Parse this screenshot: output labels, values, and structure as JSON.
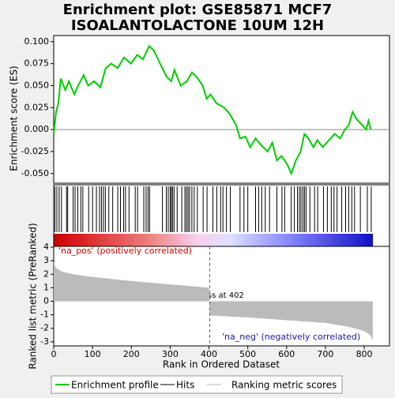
{
  "chart_data": [
    {
      "type": "line",
      "title": [
        "Enrichment plot: GSE85871 MCF7",
        "ISOALANTOLACTONE 10UM 12H"
      ],
      "ylabel": "Enrichment score (ES)",
      "color": "#00cc00",
      "xlim": [
        0,
        865
      ],
      "ylim": [
        -0.061,
        0.107
      ],
      "yticks": [
        {
          "value": 0.1,
          "label": "0.100"
        },
        {
          "value": 0.075,
          "label": "0.075"
        },
        {
          "value": 0.05,
          "label": "0.050"
        },
        {
          "value": 0.025,
          "label": "0.025"
        },
        {
          "value": 0,
          "label": "0.000"
        },
        {
          "value": -0.025,
          "label": "-0.025"
        },
        {
          "value": -0.05,
          "label": "-0.050"
        }
      ],
      "x": [
        0,
        6,
        12,
        18,
        30,
        39,
        53,
        63,
        77,
        89,
        104,
        120,
        134,
        148,
        165,
        181,
        199,
        215,
        230,
        246,
        258,
        274,
        291,
        303,
        311,
        327,
        343,
        356,
        368,
        384,
        394,
        404,
        419,
        439,
        453,
        470,
        480,
        494,
        506,
        520,
        535,
        551,
        563,
        575,
        587,
        602,
        612,
        624,
        636,
        646,
        656,
        669,
        679,
        693,
        709,
        724,
        738,
        750,
        760,
        770,
        780,
        795,
        805,
        811,
        817
      ],
      "values": [
        -0.005,
        0.02,
        0.03,
        0.058,
        0.045,
        0.055,
        0.04,
        0.05,
        0.062,
        0.05,
        0.055,
        0.048,
        0.07,
        0.075,
        0.07,
        0.082,
        0.075,
        0.085,
        0.08,
        0.095,
        0.09,
        0.075,
        0.06,
        0.055,
        0.068,
        0.05,
        0.055,
        0.065,
        0.06,
        0.05,
        0.035,
        0.04,
        0.03,
        0.025,
        0.018,
        0.005,
        -0.01,
        -0.008,
        -0.02,
        -0.01,
        -0.018,
        -0.025,
        -0.015,
        -0.035,
        -0.03,
        -0.04,
        -0.05,
        -0.035,
        -0.025,
        -0.005,
        -0.01,
        -0.02,
        -0.012,
        -0.02,
        -0.012,
        -0.005,
        -0.01,
        0,
        0.005,
        0.02,
        0.012,
        0.005,
        0,
        0.01,
        0
      ],
      "legend": [
        "Enrichment profile",
        "Hits",
        "Ranking metric scores"
      ]
    },
    {
      "type": "rug",
      "xlim": [
        0,
        865
      ],
      "x": [
        3,
        8,
        14,
        20,
        33,
        36,
        50,
        55,
        62,
        70,
        75,
        90,
        100,
        110,
        118,
        123,
        128,
        133,
        142,
        152,
        165,
        172,
        180,
        185,
        194,
        210,
        216,
        232,
        238,
        243,
        247,
        280,
        290,
        295,
        300,
        303,
        306,
        310,
        318,
        330,
        338,
        342,
        346,
        350,
        356,
        362,
        370,
        385,
        395,
        410,
        420,
        430,
        436,
        445,
        455,
        480,
        490,
        500,
        520,
        528,
        536,
        545,
        556,
        575,
        588,
        595,
        612,
        620,
        628,
        633,
        637,
        642,
        646,
        650,
        660,
        672,
        680,
        695,
        705,
        715,
        722,
        730,
        742,
        752,
        760,
        768,
        775,
        790,
        808,
        818
      ]
    },
    {
      "type": "area",
      "ylabel": "Ranked list metric (PreRanked)",
      "xlabel": "Rank in Ordered Dataset",
      "color": "#bbbbbb",
      "xlim": [
        0,
        865
      ],
      "ylim": [
        -3.3,
        4.06
      ],
      "yticks": [
        4,
        3,
        2,
        1,
        0,
        -1,
        -2,
        -3
      ],
      "xticks": [
        0,
        100,
        200,
        300,
        400,
        500,
        600,
        700,
        800
      ],
      "x": [
        0,
        5,
        20,
        50,
        100,
        200,
        300,
        400,
        402,
        500,
        600,
        700,
        760,
        800,
        815,
        822
      ],
      "values": [
        2.9,
        2.5,
        2.2,
        2.0,
        1.8,
        1.5,
        1.25,
        1.0,
        -1.05,
        -1.2,
        -1.4,
        -1.6,
        -1.9,
        -2.2,
        -2.5,
        -2.9
      ],
      "zero_cross": 402,
      "annotation": "Zero cross at 402",
      "pos_label": "'na_pos' (positively correlated)",
      "neg_label": "'na_neg' (negatively correlated)"
    }
  ]
}
